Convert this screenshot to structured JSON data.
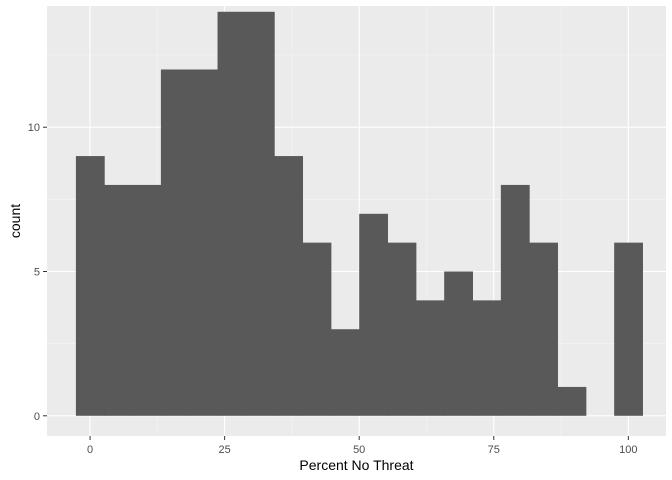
{
  "chart_data": {
    "type": "bar",
    "subtype": "histogram",
    "xlabel": "Percent No Threat",
    "ylabel": "count",
    "xlim": [
      -8,
      107
    ],
    "ylim": [
      -0.7,
      14.2
    ],
    "x_ticks": [
      0,
      25,
      50,
      75,
      100
    ],
    "y_ticks": [
      0,
      5,
      10
    ],
    "grid": true,
    "bin_width": 5.26,
    "bins": [
      {
        "x0": -2.63,
        "x1": 2.63,
        "count": 9
      },
      {
        "x0": 2.63,
        "x1": 7.89,
        "count": 8
      },
      {
        "x0": 7.89,
        "x1": 13.16,
        "count": 8
      },
      {
        "x0": 13.16,
        "x1": 18.42,
        "count": 12
      },
      {
        "x0": 18.42,
        "x1": 23.68,
        "count": 12
      },
      {
        "x0": 23.68,
        "x1": 28.95,
        "count": 14
      },
      {
        "x0": 28.95,
        "x1": 34.21,
        "count": 14
      },
      {
        "x0": 34.21,
        "x1": 39.47,
        "count": 9
      },
      {
        "x0": 39.47,
        "x1": 44.74,
        "count": 6
      },
      {
        "x0": 44.74,
        "x1": 50.0,
        "count": 3
      },
      {
        "x0": 50.0,
        "x1": 55.26,
        "count": 7
      },
      {
        "x0": 55.26,
        "x1": 60.53,
        "count": 6
      },
      {
        "x0": 60.53,
        "x1": 65.79,
        "count": 4
      },
      {
        "x0": 65.79,
        "x1": 71.05,
        "count": 5
      },
      {
        "x0": 71.05,
        "x1": 76.32,
        "count": 4
      },
      {
        "x0": 76.32,
        "x1": 81.58,
        "count": 8
      },
      {
        "x0": 81.58,
        "x1": 86.84,
        "count": 6
      },
      {
        "x0": 86.84,
        "x1": 92.11,
        "count": 1
      },
      {
        "x0": 92.11,
        "x1": 97.37,
        "count": 0
      },
      {
        "x0": 97.37,
        "x1": 102.63,
        "count": 6
      }
    ],
    "colors": {
      "bar": "#595959",
      "panel": "#ebebeb",
      "grid_major": "#ffffff",
      "grid_minor": "#f5f5f5"
    }
  }
}
